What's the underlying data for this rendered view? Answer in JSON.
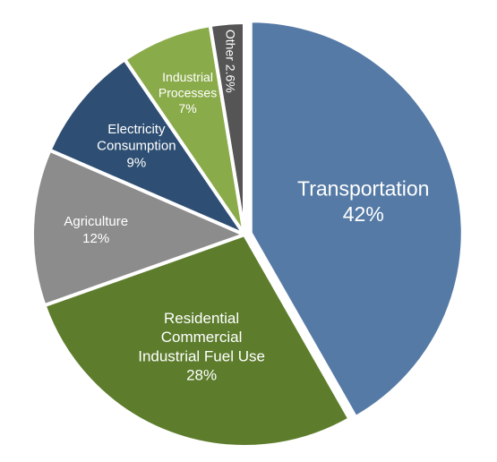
{
  "chart_data": {
    "type": "pie",
    "title": "",
    "slices": [
      {
        "name": "Transportation",
        "value": 42,
        "value_label": "42%",
        "color": "#557aa5"
      },
      {
        "name": "Residential Commercial Industrial Fuel Use",
        "value": 28,
        "value_label": "28%",
        "color": "#5d7d2d"
      },
      {
        "name": "Agriculture",
        "value": 12,
        "value_label": "12%",
        "color": "#8c8c8c"
      },
      {
        "name": "Electricity Consumption",
        "value": 9,
        "value_label": "9%",
        "color": "#2e4f73"
      },
      {
        "name": "Industrial Processes",
        "value": 7,
        "value_label": "7%",
        "color": "#8aab4a"
      },
      {
        "name": "Other",
        "value": 2.6,
        "value_label": "2.6%",
        "color": "#555555"
      }
    ]
  }
}
